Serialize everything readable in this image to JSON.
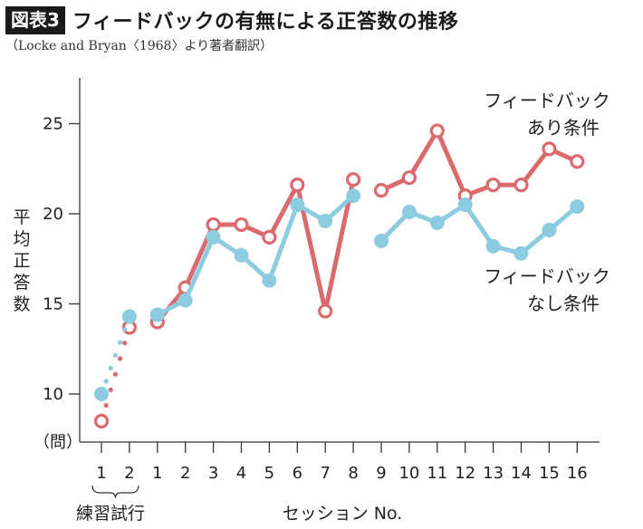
{
  "header": {
    "badge": "図表3",
    "title": "フィードバックの有無による正答数の推移",
    "source": "（Locke and Bryan〈1968〉より著者翻訳）"
  },
  "chart_data": {
    "type": "line",
    "y_unit": "（問）",
    "ylabel": "平均正答数",
    "xlabel": "セッション No.",
    "practice_label": "練習試行",
    "ylim": [
      7.5,
      27.5
    ],
    "yticks": [
      10,
      15,
      20,
      25
    ],
    "categories": [
      "1",
      "2",
      "1",
      "2",
      "3",
      "4",
      "5",
      "6",
      "7",
      "8",
      "9",
      "10",
      "11",
      "12",
      "13",
      "14",
      "15",
      "16"
    ],
    "series": [
      {
        "name": "フィードバック あり条件",
        "label_lines": [
          "フィードバック",
          "あり条件"
        ],
        "color": "#d96b6e",
        "marker": "hollow",
        "values": [
          8.5,
          13.7,
          14.0,
          15.9,
          19.4,
          19.4,
          18.7,
          21.6,
          14.6,
          21.9,
          21.3,
          22.0,
          24.6,
          21.0,
          21.6,
          21.6,
          23.6,
          22.9
        ]
      },
      {
        "name": "フィードバック なし条件",
        "label_lines": [
          "フィードバック",
          "なし条件"
        ],
        "color": "#8ccbe0",
        "marker": "filled",
        "values": [
          10.0,
          14.3,
          14.4,
          15.2,
          18.7,
          17.7,
          16.3,
          20.5,
          19.6,
          21.0,
          18.5,
          20.1,
          19.5,
          20.5,
          18.2,
          17.8,
          19.1,
          20.4
        ]
      }
    ]
  }
}
